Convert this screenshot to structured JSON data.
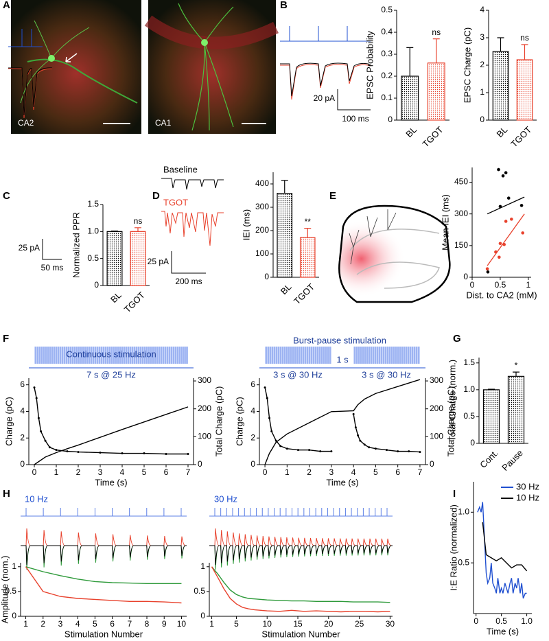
{
  "panels": [
    "A",
    "B",
    "C",
    "D",
    "E",
    "F",
    "G",
    "H",
    "I"
  ],
  "annotations": {
    "ca2": "CA2",
    "ca1": "CA1",
    "b_pa": "20 pA",
    "b_ms": "100 ms",
    "c_pa": "25 pA",
    "c_ms": "50 ms",
    "baseline": "Baseline",
    "tgot": "TGOT",
    "d_pa": "25 pA",
    "d_ms": "200 ms",
    "cont": "Continuous stimulation",
    "cont_rate": "7 s @ 25 Hz",
    "burst": "Burst-pause stimulation",
    "pause": "1 s",
    "burst_rate1": "3 s @ 30 Hz",
    "burst_rate2": "3 s @ 30 Hz",
    "h10": "10 Hz",
    "h30": "30 Hz"
  },
  "chart_data": [
    {
      "type": "bar",
      "ylabel": "EPSC Probability",
      "categories": [
        "BL",
        "TGOT"
      ],
      "values": [
        0.2,
        0.26
      ],
      "errors": [
        0.13,
        0.11
      ],
      "colors": [
        "#000000",
        "#e8412c"
      ],
      "annotation": "ns",
      "ylim": [
        0,
        0.5
      ],
      "yticks": [
        0,
        0.1,
        0.2,
        0.3,
        0.4,
        0.5
      ]
    },
    {
      "type": "bar",
      "ylabel": "EPSC Charge (pC)",
      "categories": [
        "BL",
        "TGOT"
      ],
      "values": [
        2.5,
        2.2
      ],
      "errors": [
        0.5,
        0.55
      ],
      "colors": [
        "#000000",
        "#e8412c"
      ],
      "annotation": "ns",
      "ylim": [
        0,
        4
      ],
      "yticks": [
        0,
        1,
        2,
        3,
        4
      ]
    },
    {
      "type": "bar",
      "ylabel": "Normalized PPR",
      "categories": [
        "BL",
        "TGOT"
      ],
      "values": [
        1.0,
        1.0
      ],
      "errors": [
        0.01,
        0.07
      ],
      "colors": [
        "#000000",
        "#e8412c"
      ],
      "annotation": "ns",
      "ylim": [
        0,
        1.5
      ],
      "yticks": [
        0,
        0.5,
        {
          "value": 1,
          "label": "1.0"
        },
        1.5
      ]
    },
    {
      "type": "bar",
      "ylabel": "IEI (ms)",
      "categories": [
        "BL",
        "TGOT"
      ],
      "values": [
        360,
        170
      ],
      "errors": [
        55,
        40
      ],
      "colors": [
        "#000000",
        "#e8412c"
      ],
      "annotation": "**",
      "ylim": [
        0,
        450
      ],
      "yticks": [
        0,
        100,
        200,
        300,
        400
      ]
    },
    {
      "type": "scatter",
      "xlabel": "Dist. to CA2 (mM)",
      "ylabel": "Mean IEI (ms)",
      "xlim": [
        0,
        1.05
      ],
      "xticks": [
        0,
        0.5,
        1
      ],
      "ylim": [
        0,
        520
      ],
      "yticks": [
        0,
        150,
        300,
        450
      ],
      "series": [
        {
          "color": "#000000",
          "x": [
            0.47,
            0.55,
            0.6,
            0.65,
            0.5,
            0.88,
            0.28
          ],
          "values": [
            510,
            480,
            495,
            375,
            335,
            340,
            25
          ]
        },
        {
          "color": "#e8412c",
          "x": [
            0.27,
            0.42,
            0.5,
            0.48,
            0.57,
            0.6,
            0.7,
            0.9
          ],
          "values": [
            40,
            120,
            160,
            95,
            155,
            265,
            275,
            210
          ]
        }
      ],
      "lines": [
        {
          "color": "#000000",
          "x": [
            0.27,
            0.93
          ],
          "values": [
            300,
            380
          ]
        },
        {
          "color": "#e8412c",
          "x": [
            0.27,
            0.93
          ],
          "values": [
            55,
            300
          ]
        }
      ]
    },
    {
      "type": "line",
      "xlabel": "Time (s)",
      "ylabel": "Charge (pC)",
      "y2label": "Total Charge (pC)",
      "xlim": [
        -0.25,
        7.25
      ],
      "xticks": [
        0,
        1,
        2,
        3,
        4,
        5,
        6,
        7
      ],
      "ylim": [
        0,
        6.5
      ],
      "yticks": [
        0,
        2,
        4,
        6
      ],
      "y2lim": [
        0,
        310
      ],
      "y2ticks": [
        0,
        100,
        200,
        300
      ],
      "series": [
        {
          "color": "#000000",
          "markers": true,
          "x": [
            0,
            0.1,
            0.2,
            0.3,
            0.5,
            0.7,
            1,
            1.5,
            2,
            3,
            4,
            5,
            6,
            7
          ],
          "values": [
            5.8,
            5.0,
            3.5,
            2.5,
            1.8,
            1.3,
            1.1,
            1.0,
            0.95,
            0.9,
            0.85,
            0.85,
            0.8,
            0.8
          ]
        },
        {
          "color": "#000000",
          "axis": "y2",
          "x": [
            0,
            0.5,
            1,
            1.5,
            2,
            3,
            4,
            5,
            6,
            7
          ],
          "values": [
            0,
            27,
            43,
            57,
            70,
            98,
            126,
            153,
            180,
            207
          ]
        }
      ]
    },
    {
      "type": "line",
      "xlabel": "Time (s)",
      "ylabel": "Charge (pC)",
      "y2label": "Total Charge (pC)",
      "xlim": [
        -0.25,
        7.25
      ],
      "xticks": [
        0,
        1,
        2,
        3,
        4,
        5,
        6,
        7
      ],
      "ylim": [
        0,
        6.5
      ],
      "yticks": [
        0,
        2,
        4,
        6
      ],
      "y2lim": [
        0,
        310
      ],
      "y2ticks": [
        0,
        100,
        200,
        300
      ],
      "series": [
        {
          "color": "#000000",
          "markers": true,
          "x": [
            0,
            0.1,
            0.2,
            0.3,
            0.5,
            0.7,
            1,
            1.5,
            2,
            2.5,
            3,
            3.5,
            4,
            4.1,
            4.2,
            4.3,
            4.5,
            4.7,
            5,
            5.5,
            6,
            6.5,
            7
          ],
          "values": [
            5.8,
            5.0,
            3.5,
            2.5,
            1.8,
            1.4,
            1.2,
            1.1,
            1.1,
            1.0,
            1.0,
            null,
            3.8,
            2.8,
            2.2,
            1.8,
            1.5,
            1.3,
            1.2,
            1.1,
            1.0,
            1.0,
            0.95
          ]
        },
        {
          "color": "#000000",
          "axis": "y2",
          "x": [
            0,
            0.2,
            0.5,
            1,
            2,
            3,
            4,
            4.2,
            4.5,
            5,
            6,
            7
          ],
          "values": [
            0,
            40,
            80,
            110,
            150,
            190,
            193,
            215,
            235,
            255,
            280,
            305
          ]
        }
      ]
    },
    {
      "type": "bar",
      "ylabel": "Total Charge (norm.)",
      "categories": [
        "Cont.",
        "Pause"
      ],
      "values": [
        1.0,
        1.25
      ],
      "errors": [
        0.01,
        0.08
      ],
      "colors": [
        "#000000",
        "#000000"
      ],
      "annotation": "*",
      "ylim": [
        0,
        1.6
      ],
      "yticks": [
        0,
        0.5,
        {
          "value": 1,
          "label": "1.0"
        },
        1.5
      ]
    },
    {
      "type": "line",
      "xlabel": "Stimulation Number",
      "ylabel": "Amplitude (nom.)",
      "xlim": [
        0.7,
        10.3
      ],
      "xticks": [
        1,
        2,
        3,
        4,
        5,
        6,
        7,
        8,
        9,
        10
      ],
      "ylim": [
        0,
        1.08
      ],
      "yticks": [
        0,
        0.5,
        1
      ],
      "series": [
        {
          "color": "#2e9a3a",
          "x": [
            1,
            2,
            3,
            4,
            5,
            6,
            7,
            8,
            9,
            10
          ],
          "values": [
            1,
            0.9,
            0.82,
            0.75,
            0.7,
            0.68,
            0.67,
            0.66,
            0.66,
            0.66
          ]
        },
        {
          "color": "#e8412c",
          "x": [
            1,
            2,
            3,
            4,
            5,
            6,
            7,
            8,
            9,
            10
          ],
          "values": [
            1,
            0.5,
            0.4,
            0.36,
            0.34,
            0.32,
            0.3,
            0.3,
            0.29,
            0.27
          ]
        }
      ]
    },
    {
      "type": "line",
      "xlabel": "Stimulation Number",
      "xlim": [
        0.6,
        30.4
      ],
      "xticks": [
        1,
        5,
        10,
        15,
        20,
        25,
        30
      ],
      "ylim": [
        0,
        1.08
      ],
      "yticks": [
        0,
        0.5,
        1
      ],
      "series": [
        {
          "color": "#2e9a3a",
          "x": [
            1,
            2,
            3,
            4,
            5,
            6,
            7,
            8,
            9,
            10,
            12,
            14,
            16,
            18,
            20,
            22,
            24,
            26,
            28,
            30
          ],
          "values": [
            1,
            0.85,
            0.68,
            0.53,
            0.44,
            0.39,
            0.36,
            0.35,
            0.34,
            0.33,
            0.32,
            0.31,
            0.31,
            0.3,
            0.3,
            0.3,
            0.29,
            0.29,
            0.29,
            0.28
          ]
        },
        {
          "color": "#e8412c",
          "x": [
            1,
            2,
            3,
            4,
            5,
            6,
            7,
            8,
            9,
            10,
            12,
            14,
            16,
            18,
            20,
            22,
            24,
            26,
            28,
            30
          ],
          "values": [
            1,
            0.78,
            0.55,
            0.36,
            0.25,
            0.18,
            0.15,
            0.13,
            0.12,
            0.11,
            0.1,
            0.12,
            0.1,
            0.11,
            0.1,
            0.09,
            0.1,
            0.1,
            0.09,
            0.1
          ]
        }
      ]
    },
    {
      "type": "line",
      "xlabel": "Time (s)",
      "ylabel": "I:E Ratio (normalized)",
      "legend": "upper right",
      "xlim": [
        -0.05,
        1.1
      ],
      "xticks": [
        0,
        0.5,
        {
          "value": 1,
          "label": "1.0"
        }
      ],
      "ylim": [
        0,
        1.3
      ],
      "yticks": [
        0.5,
        {
          "value": 1,
          "label": "1.0"
        }
      ],
      "series": [
        {
          "name": "30 Hz",
          "color": "#1f4fd0",
          "x": [
            0.03,
            0.07,
            0.1,
            0.13,
            0.17,
            0.2,
            0.23,
            0.27,
            0.3,
            0.33,
            0.37,
            0.4,
            0.43,
            0.47,
            0.5,
            0.53,
            0.57,
            0.6,
            0.63,
            0.67,
            0.7,
            0.73,
            0.77,
            0.8,
            0.83,
            0.87,
            0.9,
            0.93,
            0.97,
            1.0
          ],
          "values": [
            1.0,
            1.05,
            1.0,
            1.1,
            0.7,
            0.4,
            0.3,
            0.35,
            0.5,
            0.3,
            0.25,
            0.2,
            0.35,
            0.2,
            0.25,
            0.2,
            0.3,
            0.25,
            0.2,
            0.3,
            0.35,
            0.2,
            0.3,
            0.25,
            0.35,
            0.2,
            0.3,
            0.15,
            0.2,
            0.2
          ]
        },
        {
          "name": "10 Hz",
          "color": "#000000",
          "x": [
            0.13,
            0.2,
            0.3,
            0.4,
            0.5,
            0.6,
            0.7,
            0.8,
            0.9,
            1.0
          ],
          "values": [
            0.9,
            0.58,
            0.55,
            0.52,
            0.55,
            0.5,
            0.45,
            0.48,
            0.48,
            0.42
          ]
        }
      ]
    }
  ]
}
